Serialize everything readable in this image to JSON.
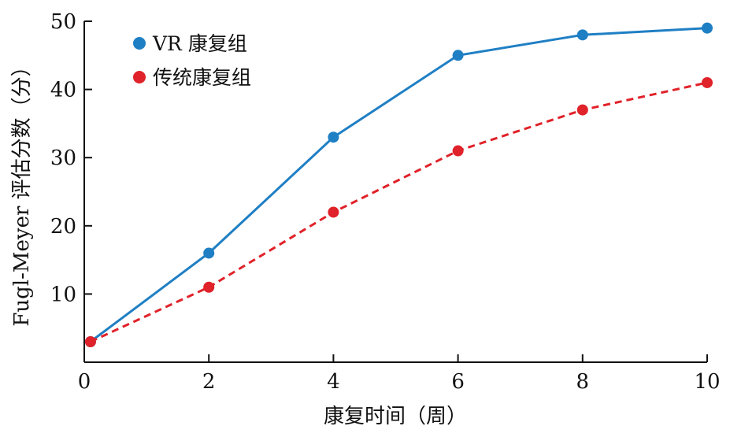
{
  "chart_data": {
    "type": "line",
    "xlabel": "康复时间（周）",
    "ylabel": "Fugl-Meyer 评估分数（分）",
    "xlim": [
      0,
      10
    ],
    "ylim": [
      0,
      50
    ],
    "x_ticks": [
      0,
      2,
      4,
      6,
      8,
      10
    ],
    "y_ticks": [
      10,
      20,
      30,
      40,
      50
    ],
    "x_tick_labels": [
      "0",
      "2",
      "4",
      "6",
      "8",
      "10"
    ],
    "y_tick_labels": [
      "10",
      "20",
      "30",
      "40",
      "50"
    ],
    "grid": false,
    "legend_position": "top-left",
    "series": [
      {
        "name": "VR 康复组",
        "color": "#1f7fc4",
        "line_style": "solid",
        "x": [
          0.1,
          2,
          4,
          6,
          8,
          10
        ],
        "y": [
          3,
          16,
          33,
          45,
          48,
          49
        ]
      },
      {
        "name": "传统康复组",
        "color": "#e0222a",
        "line_style": "dashed",
        "x": [
          0.1,
          2,
          4,
          6,
          8,
          10
        ],
        "y": [
          3,
          11,
          22,
          31,
          37,
          41
        ]
      }
    ]
  }
}
